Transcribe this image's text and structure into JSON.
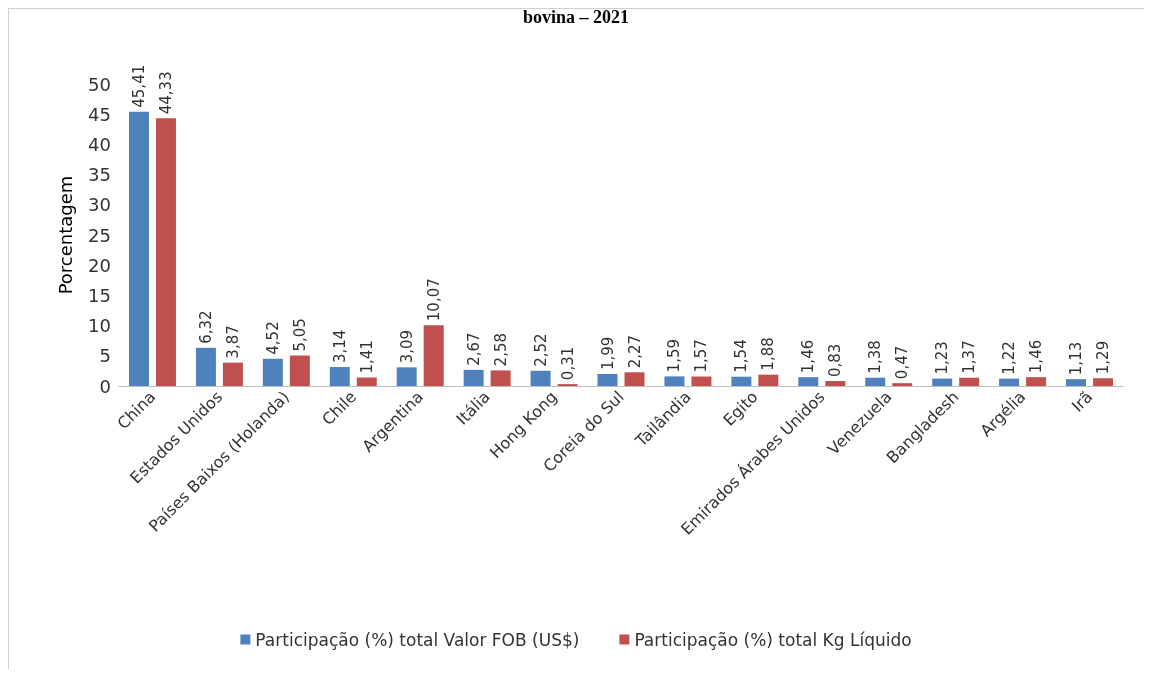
{
  "chart_data": {
    "type": "bar",
    "title": "bovina – 2021",
    "ylabel": "Porcentagem",
    "categories": [
      "China",
      "Estados Unidos",
      "Países Baixos (Holanda)",
      "Chile",
      "Argentina",
      "Itália",
      "Hong Kong",
      "Coreia do Sul",
      "Tailândia",
      "Egito",
      "Emirados Árabes Unidos",
      "Venezuela",
      "Bangladesh",
      "Argélia",
      "Irã"
    ],
    "series": [
      {
        "name": "Participação (%) total Valor FOB (US$)",
        "color": "#4f81bd",
        "values": [
          45.41,
          6.32,
          4.52,
          3.14,
          3.09,
          2.67,
          2.52,
          1.99,
          1.59,
          1.54,
          1.46,
          1.38,
          1.23,
          1.22,
          1.13
        ],
        "value_labels": [
          "45,41",
          "6,32",
          "4,52",
          "3,14",
          "3,09",
          "2,67",
          "2,52",
          "1,99",
          "1,59",
          "1,54",
          "1,46",
          "1,38",
          "1,23",
          "1,22",
          "1,13"
        ]
      },
      {
        "name": "Participação (%) total Kg Líquido",
        "color": "#c0504d",
        "values": [
          44.33,
          3.87,
          5.05,
          1.41,
          10.07,
          2.58,
          0.31,
          2.27,
          1.57,
          1.88,
          0.83,
          0.47,
          1.37,
          1.46,
          1.29
        ],
        "value_labels": [
          "44,33",
          "3,87",
          "5,05",
          "1,41",
          "10,07",
          "2,58",
          "0,31",
          "2,27",
          "1,57",
          "1,88",
          "0,83",
          "0,47",
          "1,37",
          "1,46",
          "1,29"
        ]
      }
    ],
    "ylim": [
      0,
      50
    ],
    "yticks": [
      0,
      5,
      10,
      15,
      20,
      25,
      30,
      35,
      40,
      45,
      50
    ],
    "grid": false,
    "legend": "bottom"
  }
}
